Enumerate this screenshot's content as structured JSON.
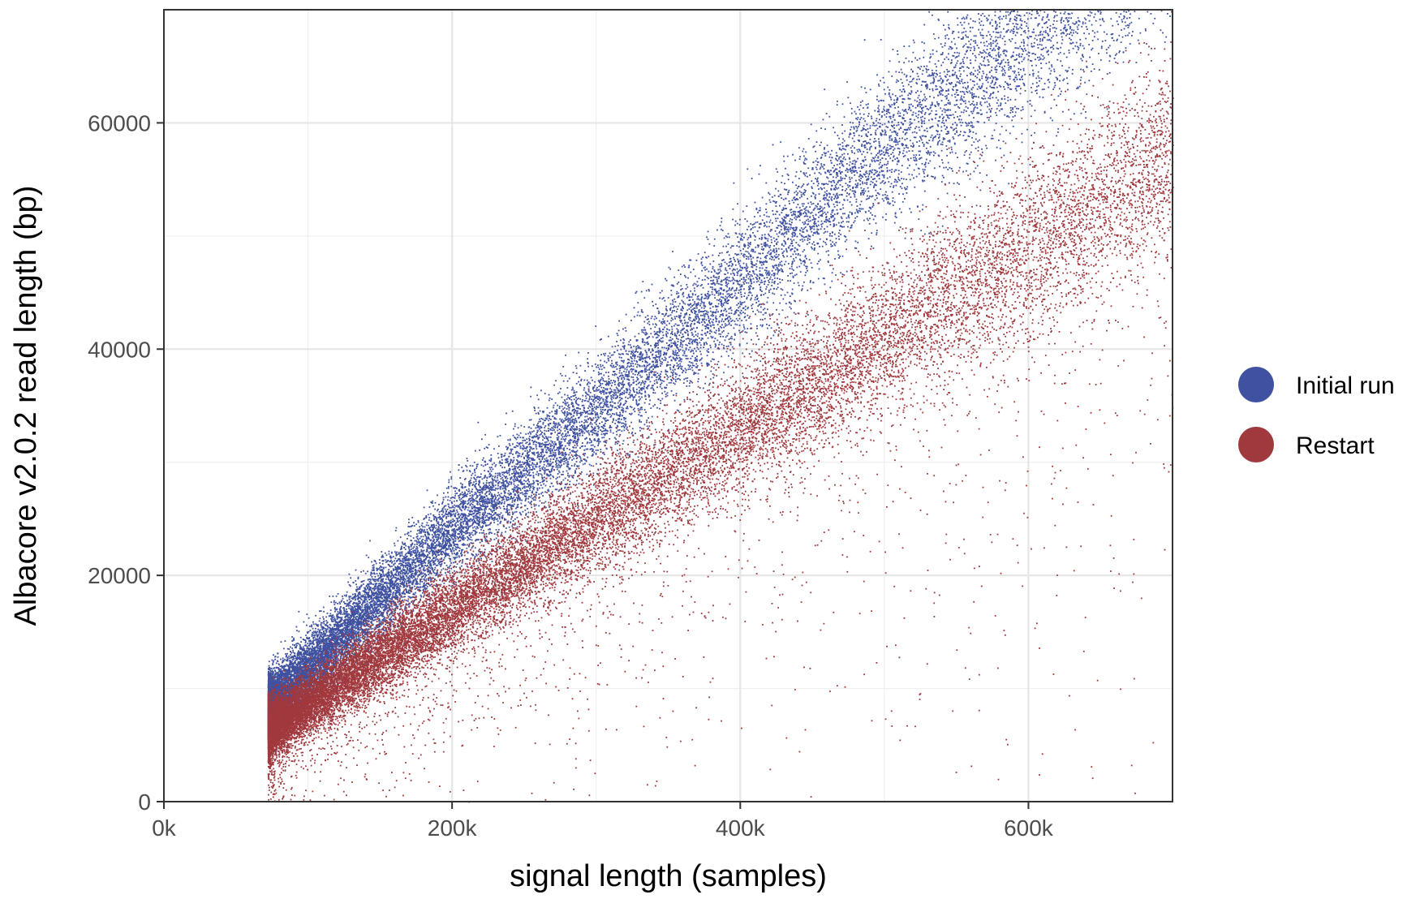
{
  "chart_data": {
    "type": "scatter",
    "title": "",
    "xlabel": "signal length (samples)",
    "ylabel": "Albacore v2.0.2 read length (bp)",
    "xlim": [
      0,
      700000
    ],
    "ylim": [
      0,
      70000
    ],
    "x_ticks": [
      0,
      200000,
      400000,
      600000
    ],
    "x_tick_labels": [
      "0k",
      "200k",
      "400k",
      "600k"
    ],
    "y_ticks": [
      0,
      20000,
      40000,
      60000
    ],
    "y_tick_labels": [
      "0",
      "20000",
      "40000",
      "60000"
    ],
    "grid": true,
    "legend_position": "right",
    "series": [
      {
        "name": "Initial run",
        "color": "#3f51a0",
        "trend": {
          "x_range": [
            72000,
            700000
          ],
          "points": [
            [
              72000,
              8500
            ],
            [
              200000,
              24000
            ],
            [
              300000,
              34500
            ],
            [
              400000,
              46000
            ],
            [
              500000,
              58000
            ],
            [
              600000,
              68000
            ]
          ]
        },
        "x_min": 72000,
        "point_count_estimate": 20000
      },
      {
        "name": "Restart",
        "color": "#a0393e",
        "trend": {
          "x_range": [
            72000,
            700000
          ],
          "points": [
            [
              72000,
              6500
            ],
            [
              200000,
              17000
            ],
            [
              300000,
              25000
            ],
            [
              400000,
              33000
            ],
            [
              500000,
              41000
            ],
            [
              600000,
              49000
            ],
            [
              700000,
              57000
            ]
          ]
        },
        "x_min": 72000,
        "point_count_estimate": 26000
      }
    ]
  }
}
